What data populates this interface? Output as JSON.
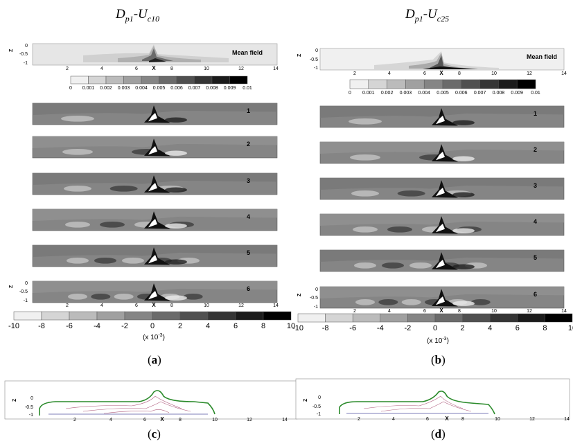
{
  "titles": {
    "left": {
      "main": "D",
      "sub1": "p1",
      "dash": "-U",
      "sub2": "c10"
    },
    "right": {
      "main": "D",
      "sub1": "p1",
      "dash": "-U",
      "sub2": "c25"
    }
  },
  "axes": {
    "z_label": "Z",
    "x_label": "X",
    "z_ticks": [
      "0",
      "-0.5",
      "-1"
    ],
    "x_ticks": [
      "2",
      "4",
      "6",
      "8",
      "10",
      "12",
      "14"
    ]
  },
  "panel_labels": {
    "mean": "Mean field",
    "modes": [
      "1",
      "2",
      "3",
      "4",
      "5",
      "6"
    ]
  },
  "mean_colorbar": {
    "ticks": [
      "0",
      "0.001",
      "0.002",
      "0.003",
      "0.004",
      "0.005",
      "0.006",
      "0.007",
      "0.008",
      "0.009",
      "0.01"
    ]
  },
  "mode_colorbar": {
    "ticks": [
      "-10",
      "-8",
      "-6",
      "-4",
      "-2",
      "0",
      "2",
      "4",
      "6",
      "8",
      "10"
    ],
    "unit": "(x 10",
    "unit_exp": "-3",
    "unit_close": ")"
  },
  "captions": {
    "a": "a",
    "b": "b",
    "c": "c",
    "d": "d"
  }
}
